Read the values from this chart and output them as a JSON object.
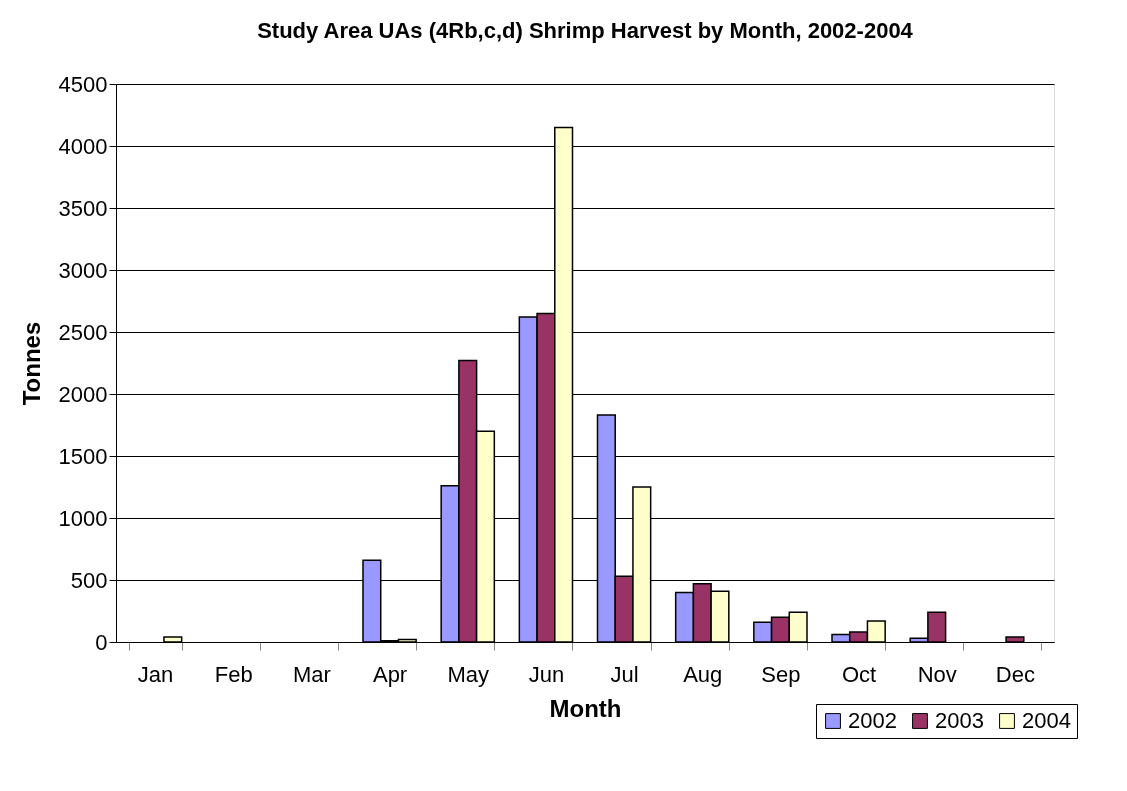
{
  "chart_data": {
    "type": "bar",
    "title": "Study Area UAs (4Rb,c,d) Shrimp Harvest by Month, 2002-2004",
    "xlabel": "Month",
    "ylabel": "Tonnes",
    "categories": [
      "Jan",
      "Feb",
      "Mar",
      "Apr",
      "May",
      "Jun",
      "Jul",
      "Aug",
      "Sep",
      "Oct",
      "Nov",
      "Dec"
    ],
    "series": [
      {
        "name": "2002",
        "color": "#9999ff",
        "values": [
          null,
          null,
          null,
          660,
          1260,
          2620,
          1830,
          400,
          160,
          60,
          30,
          null
        ]
      },
      {
        "name": "2003",
        "color": "#993366",
        "values": [
          null,
          null,
          null,
          10,
          2270,
          2650,
          530,
          470,
          200,
          80,
          240,
          40
        ]
      },
      {
        "name": "2004",
        "color": "#ffffcc",
        "values": [
          40,
          null,
          null,
          20,
          1700,
          4150,
          1250,
          410,
          240,
          170,
          null,
          null
        ]
      }
    ],
    "ylim": [
      0,
      4500
    ],
    "yticks": [
      0,
      500,
      1000,
      1500,
      2000,
      2500,
      3000,
      3500,
      4000,
      4500
    ],
    "grid": "y",
    "legend": "bottom right"
  }
}
